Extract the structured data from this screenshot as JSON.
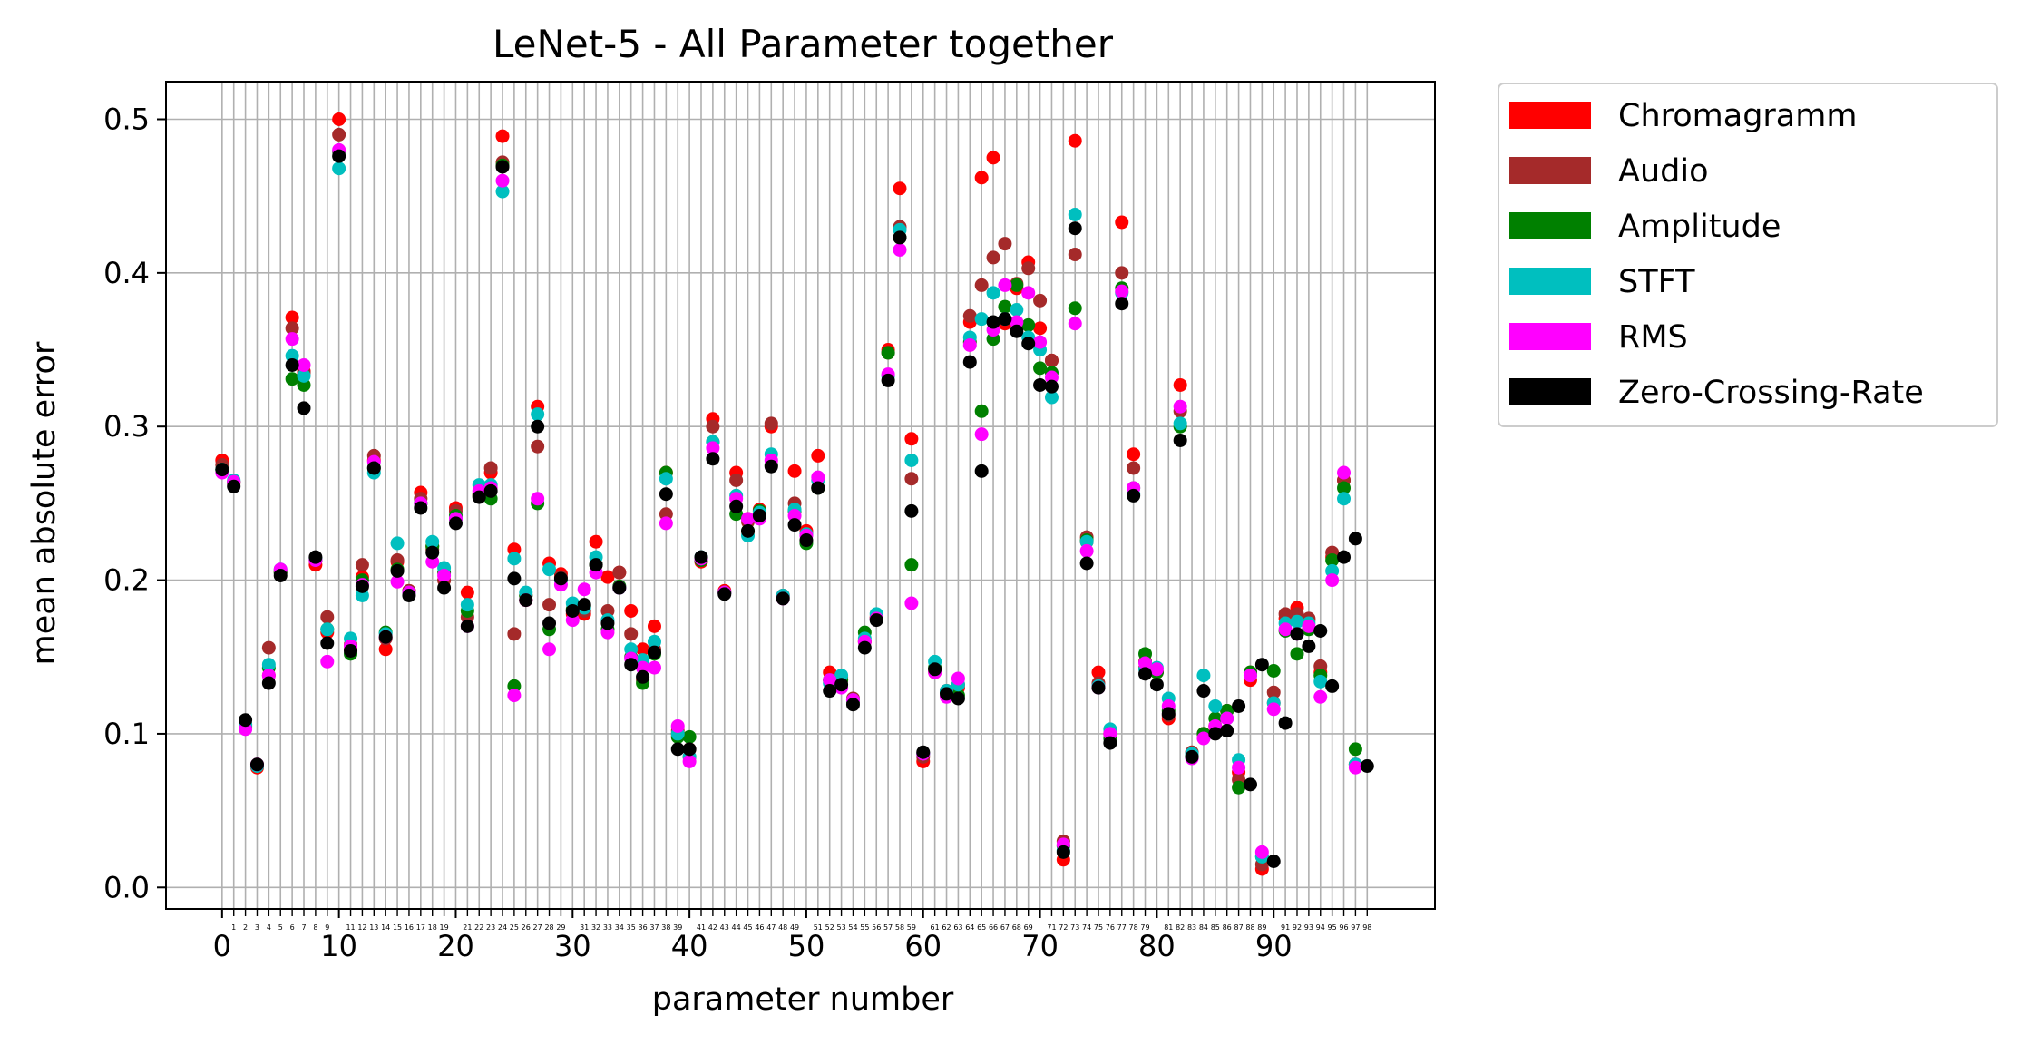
{
  "chart_data": {
    "type": "scatter",
    "title": "LeNet-5 - All Parameter together",
    "xlabel": "parameter number",
    "ylabel": "mean absolute error",
    "xlim": [
      -4.8,
      103.8
    ],
    "ylim": [
      -0.014,
      0.5245
    ],
    "xticks": [
      0,
      10,
      20,
      30,
      40,
      50,
      60,
      70,
      80,
      90
    ],
    "xtick_labels": [
      "0",
      "10",
      "20",
      "30",
      "40",
      "50",
      "60",
      "70",
      "80",
      "90"
    ],
    "yticks": [
      0.0,
      0.1,
      0.2,
      0.3,
      0.4,
      0.5
    ],
    "ytick_labels": [
      "0.0",
      "0.1",
      "0.2",
      "0.3",
      "0.4",
      "0.5"
    ],
    "minor_tick_labels": [
      "1",
      "2",
      "3",
      "4",
      "5",
      "6",
      "7",
      "8",
      "9",
      "11",
      "12",
      "13",
      "14",
      "15",
      "16",
      "17",
      "18",
      "19",
      "21",
      "22",
      "23",
      "24",
      "25",
      "26",
      "27",
      "28",
      "29",
      "31",
      "32",
      "33",
      "34",
      "35",
      "36",
      "37",
      "38",
      "39",
      "41",
      "42",
      "43",
      "44",
      "45",
      "46",
      "47",
      "48",
      "49",
      "51",
      "52",
      "53",
      "54",
      "55",
      "56",
      "57",
      "58",
      "59",
      "61",
      "62",
      "63",
      "64",
      "65",
      "66",
      "67",
      "68",
      "69",
      "71",
      "72",
      "73",
      "74",
      "75",
      "76",
      "77",
      "78",
      "79",
      "81",
      "82",
      "83",
      "84",
      "85",
      "86",
      "87",
      "88",
      "89",
      "91",
      "92",
      "93",
      "94",
      "95",
      "96",
      "97",
      "98"
    ],
    "grid": true,
    "legend_position": "outside-right-top",
    "x": [
      0,
      1,
      2,
      3,
      4,
      5,
      6,
      7,
      8,
      9,
      10,
      11,
      12,
      13,
      14,
      15,
      16,
      17,
      18,
      19,
      20,
      21,
      22,
      23,
      24,
      25,
      26,
      27,
      28,
      29,
      30,
      31,
      32,
      33,
      34,
      35,
      36,
      37,
      38,
      39,
      40,
      41,
      42,
      43,
      44,
      45,
      46,
      47,
      48,
      49,
      50,
      51,
      52,
      53,
      54,
      55,
      56,
      57,
      58,
      59,
      60,
      61,
      62,
      63,
      64,
      65,
      66,
      67,
      68,
      69,
      70,
      71,
      72,
      73,
      74,
      75,
      76,
      77,
      78,
      79,
      80,
      81,
      82,
      83,
      84,
      85,
      86,
      87,
      88,
      89,
      90,
      91,
      92,
      93,
      94,
      95,
      96,
      97,
      98
    ],
    "series": [
      {
        "name": "Chromagramm",
        "color": "#ff0000",
        "values": [
          0.278,
          0.264,
          0.104,
          0.078,
          0.138,
          0.206,
          0.371,
          0.336,
          0.21,
          0.166,
          0.5,
          0.155,
          0.202,
          0.278,
          0.155,
          0.212,
          0.193,
          0.257,
          0.222,
          0.2,
          0.247,
          0.192,
          0.255,
          0.27,
          0.489,
          0.22,
          0.187,
          0.313,
          0.211,
          0.204,
          0.178,
          0.178,
          0.225,
          0.202,
          0.205,
          0.18,
          0.155,
          0.17,
          0.27,
          0.1,
          0.09,
          0.212,
          0.305,
          0.193,
          0.27,
          0.24,
          0.246,
          0.3,
          0.19,
          0.271,
          0.232,
          0.281,
          0.14,
          0.137,
          0.122,
          0.16,
          0.176,
          0.35,
          0.455,
          0.292,
          0.082,
          0.14,
          0.128,
          0.13,
          0.368,
          0.462,
          0.475,
          0.367,
          0.39,
          0.407,
          0.364,
          0.343,
          0.018,
          0.486,
          0.225,
          0.14,
          0.1,
          0.433,
          0.282,
          0.143,
          0.14,
          0.11,
          0.327,
          0.087,
          0.1,
          0.105,
          0.115,
          0.075,
          0.135,
          0.012,
          0.12,
          0.175,
          0.182,
          0.174,
          0.14,
          0.215,
          0.265,
          0.08
        ]
      },
      {
        "name": "Audio",
        "color": "#a52a2a",
        "values": [
          0.275,
          0.263,
          0.106,
          0.08,
          0.156,
          0.205,
          0.364,
          0.335,
          0.213,
          0.176,
          0.49,
          0.158,
          0.21,
          0.281,
          0.162,
          0.213,
          0.193,
          0.253,
          0.22,
          0.2,
          0.245,
          0.176,
          0.256,
          0.273,
          0.472,
          0.165,
          0.19,
          0.287,
          0.184,
          0.202,
          0.18,
          0.18,
          0.21,
          0.18,
          0.205,
          0.165,
          0.135,
          0.155,
          0.243,
          0.102,
          0.085,
          0.213,
          0.3,
          0.192,
          0.265,
          0.238,
          0.245,
          0.302,
          0.19,
          0.25,
          0.23,
          0.26,
          0.135,
          0.135,
          0.123,
          0.16,
          0.175,
          0.348,
          0.43,
          0.266,
          0.085,
          0.142,
          0.127,
          0.132,
          0.372,
          0.392,
          0.41,
          0.419,
          0.393,
          0.403,
          0.382,
          0.343,
          0.03,
          0.412,
          0.228,
          0.133,
          0.1,
          0.4,
          0.273,
          0.147,
          0.14,
          0.112,
          0.31,
          0.088,
          0.1,
          0.105,
          0.115,
          0.07,
          0.14,
          0.015,
          0.127,
          0.178,
          0.178,
          0.175,
          0.144,
          0.218,
          0.265,
          0.08
        ]
      },
      {
        "name": "Amplitude",
        "color": "#008000",
        "values": [
          0.272,
          0.264,
          0.105,
          0.079,
          0.143,
          0.205,
          0.331,
          0.327,
          0.213,
          0.168,
          0.479,
          0.152,
          0.2,
          0.273,
          0.166,
          0.207,
          0.192,
          0.25,
          0.222,
          0.205,
          0.242,
          0.18,
          0.255,
          0.253,
          0.47,
          0.131,
          0.19,
          0.25,
          0.168,
          0.2,
          0.181,
          0.183,
          0.21,
          0.168,
          0.196,
          0.15,
          0.133,
          0.152,
          0.27,
          0.098,
          0.098,
          0.213,
          0.29,
          0.192,
          0.243,
          0.232,
          0.245,
          0.275,
          0.189,
          0.245,
          0.224,
          0.26,
          0.135,
          0.135,
          0.121,
          0.166,
          0.175,
          0.348,
          0.423,
          0.21,
          0.087,
          0.143,
          0.127,
          0.125,
          0.355,
          0.31,
          0.357,
          0.378,
          0.392,
          0.366,
          0.338,
          0.335,
          0.027,
          0.377,
          0.226,
          0.13,
          0.097,
          0.39,
          0.26,
          0.152,
          0.14,
          0.115,
          0.3,
          0.085,
          0.1,
          0.11,
          0.115,
          0.065,
          0.14,
          0.02,
          0.141,
          0.167,
          0.152,
          0.168,
          0.138,
          0.213,
          0.26,
          0.09
        ]
      },
      {
        "name": "STFT",
        "color": "#00bfbf",
        "values": [
          0.272,
          0.265,
          0.106,
          0.079,
          0.145,
          0.207,
          0.346,
          0.333,
          0.214,
          0.168,
          0.468,
          0.162,
          0.19,
          0.27,
          0.165,
          0.224,
          0.192,
          0.25,
          0.225,
          0.208,
          0.24,
          0.184,
          0.262,
          0.262,
          0.453,
          0.214,
          0.192,
          0.308,
          0.207,
          0.2,
          0.185,
          0.182,
          0.215,
          0.174,
          0.195,
          0.155,
          0.148,
          0.16,
          0.266,
          0.1,
          0.085,
          0.215,
          0.29,
          0.192,
          0.255,
          0.229,
          0.244,
          0.282,
          0.19,
          0.246,
          0.23,
          0.265,
          0.133,
          0.138,
          0.122,
          0.162,
          0.178,
          0.333,
          0.428,
          0.278,
          0.087,
          0.147,
          0.128,
          0.132,
          0.358,
          0.37,
          0.387,
          0.37,
          0.376,
          0.358,
          0.35,
          0.319,
          0.024,
          0.438,
          0.225,
          0.131,
          0.103,
          0.387,
          0.256,
          0.142,
          0.143,
          0.123,
          0.302,
          0.087,
          0.138,
          0.118,
          0.11,
          0.083,
          0.138,
          0.02,
          0.12,
          0.172,
          0.173,
          0.172,
          0.134,
          0.206,
          0.253,
          0.08
        ]
      },
      {
        "name": "RMS",
        "color": "#ff00ff",
        "values": [
          0.27,
          0.264,
          0.103,
          0.08,
          0.138,
          0.207,
          0.357,
          0.34,
          0.213,
          0.147,
          0.48,
          0.157,
          0.197,
          0.277,
          0.163,
          0.199,
          0.192,
          0.25,
          0.212,
          0.203,
          0.24,
          0.17,
          0.258,
          0.26,
          0.46,
          0.125,
          0.187,
          0.253,
          0.155,
          0.197,
          0.174,
          0.194,
          0.205,
          0.166,
          0.195,
          0.149,
          0.143,
          0.143,
          0.237,
          0.105,
          0.082,
          0.214,
          0.286,
          0.192,
          0.253,
          0.24,
          0.24,
          0.278,
          0.188,
          0.242,
          0.229,
          0.267,
          0.135,
          0.13,
          0.122,
          0.16,
          0.175,
          0.334,
          0.415,
          0.185,
          0.087,
          0.14,
          0.124,
          0.136,
          0.353,
          0.295,
          0.363,
          0.392,
          0.368,
          0.387,
          0.355,
          0.332,
          0.028,
          0.367,
          0.219,
          0.13,
          0.1,
          0.388,
          0.26,
          0.146,
          0.142,
          0.118,
          0.313,
          0.084,
          0.097,
          0.105,
          0.11,
          0.078,
          0.138,
          0.023,
          0.116,
          0.168,
          0.165,
          0.17,
          0.124,
          0.2,
          0.27,
          0.078
        ]
      },
      {
        "name": "Zero-Crossing-Rate",
        "color": "#000000",
        "values": [
          0.272,
          0.261,
          0.109,
          0.08,
          0.133,
          0.203,
          0.34,
          0.312,
          0.215,
          0.159,
          0.476,
          0.154,
          0.196,
          0.273,
          0.163,
          0.206,
          0.19,
          0.247,
          0.218,
          0.195,
          0.237,
          0.17,
          0.254,
          0.258,
          0.469,
          0.201,
          0.187,
          0.3,
          0.172,
          0.201,
          0.18,
          0.184,
          0.21,
          0.172,
          0.195,
          0.145,
          0.137,
          0.153,
          0.256,
          0.09,
          0.09,
          0.215,
          0.279,
          0.191,
          0.248,
          0.232,
          0.242,
          0.274,
          0.188,
          0.236,
          0.226,
          0.26,
          0.128,
          0.132,
          0.119,
          0.156,
          0.174,
          0.33,
          0.423,
          0.245,
          0.088,
          0.142,
          0.126,
          0.123,
          0.342,
          0.271,
          0.368,
          0.37,
          0.362,
          0.354,
          0.327,
          0.326,
          0.023,
          0.429,
          0.211,
          0.13,
          0.094,
          0.38,
          0.255,
          0.139,
          0.132,
          0.113,
          0.291,
          0.085,
          0.128,
          0.1,
          0.102,
          0.118,
          0.067,
          0.145,
          0.017,
          0.107,
          0.165,
          0.157,
          0.167,
          0.131,
          0.215,
          0.227,
          0.079
        ]
      }
    ]
  }
}
